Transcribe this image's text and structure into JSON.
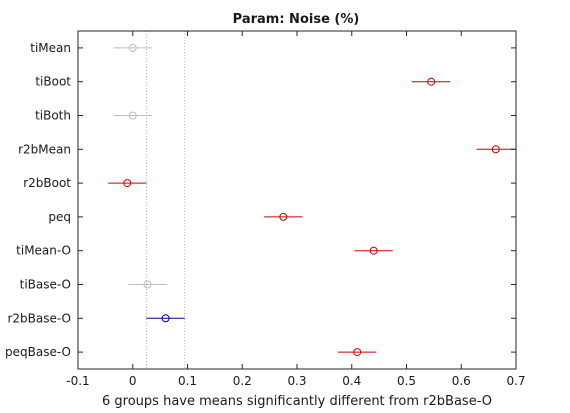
{
  "chart_data": {
    "type": "scatter",
    "title": "Param: Noise (%)",
    "xlabel": "6 groups have means significantly different from r2bBase-O",
    "ylabel": "",
    "xlim": [
      -0.1,
      0.7
    ],
    "x_ticks": [
      -0.1,
      0,
      0.1,
      0.2,
      0.3,
      0.4,
      0.5,
      0.6,
      0.7
    ],
    "x_tick_labels": [
      "-0.1",
      "0",
      "0.1",
      "0.2",
      "0.3",
      "0.4",
      "0.5",
      "0.6",
      "0.7"
    ],
    "reference_interval": [
      0.025,
      0.095
    ],
    "grid": false,
    "colors": {
      "significant": "#cc0000",
      "selected": "#00008b",
      "not_significant": "#bfbfbf"
    },
    "groups": [
      {
        "label": "tiMean",
        "mean": 0.0,
        "low": -0.035,
        "high": 0.035,
        "status": "not_significant"
      },
      {
        "label": "tiBoot",
        "mean": 0.545,
        "low": 0.51,
        "high": 0.58,
        "status": "significant"
      },
      {
        "label": "tiBoth",
        "mean": 0.0,
        "low": -0.035,
        "high": 0.035,
        "status": "not_significant"
      },
      {
        "label": "r2bMean",
        "mean": 0.663,
        "low": 0.628,
        "high": 0.698,
        "status": "significant"
      },
      {
        "label": "r2bBoot",
        "mean": -0.01,
        "low": -0.045,
        "high": 0.025,
        "status": "significant"
      },
      {
        "label": "peq",
        "mean": 0.275,
        "low": 0.24,
        "high": 0.31,
        "status": "significant"
      },
      {
        "label": "tiMean-O",
        "mean": 0.44,
        "low": 0.405,
        "high": 0.475,
        "status": "significant"
      },
      {
        "label": "tiBase-O",
        "mean": 0.027,
        "low": -0.008,
        "high": 0.062,
        "status": "not_significant"
      },
      {
        "label": "r2bBase-O",
        "mean": 0.06,
        "low": 0.025,
        "high": 0.095,
        "status": "selected"
      },
      {
        "label": "peqBase-O",
        "mean": 0.41,
        "low": 0.375,
        "high": 0.445,
        "status": "significant"
      }
    ]
  }
}
